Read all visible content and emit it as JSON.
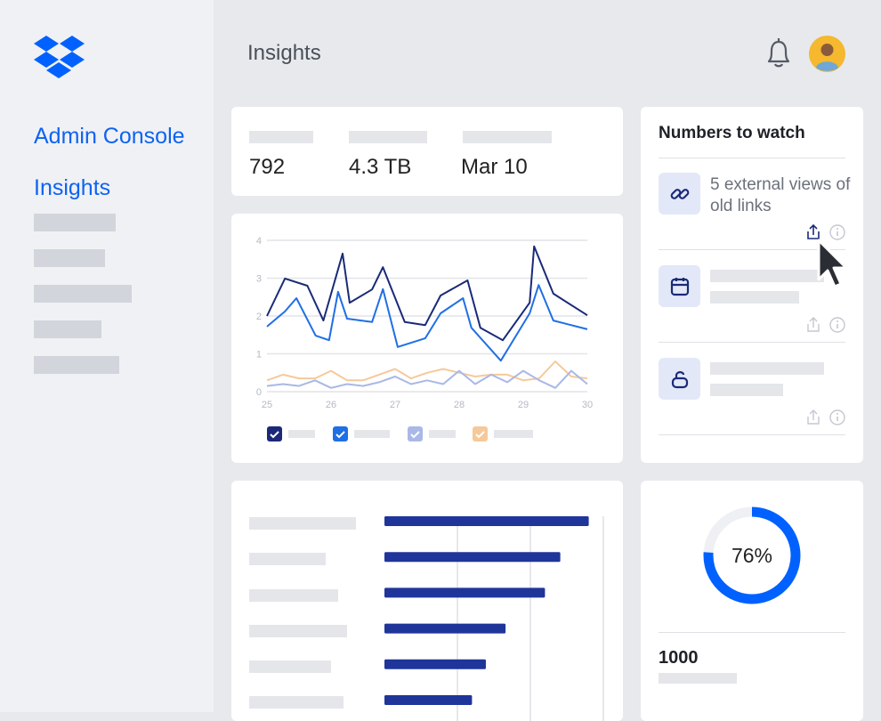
{
  "sidebar": {
    "title": "Admin Console",
    "active": "Insights"
  },
  "header": {
    "title": "Insights"
  },
  "stats": [
    792,
    "4.3 TB",
    "Mar 10"
  ],
  "numbers_to_watch": {
    "title": "Numbers to watch",
    "items": [
      {
        "text": "5 external views of old links"
      }
    ]
  },
  "summary": {
    "value": 1000
  },
  "chart_data": [
    {
      "type": "line",
      "xlim": [
        25,
        30
      ],
      "xticks": [
        25,
        26,
        27,
        28,
        29,
        30
      ],
      "ylim": [
        0,
        4
      ],
      "yticks": [
        0,
        1,
        2,
        3,
        4
      ],
      "grid": true,
      "series": [
        {
          "color": "#1a2a78",
          "x": [
            25,
            25.28,
            25.63,
            25.88,
            26.18,
            26.29,
            26.64,
            26.81,
            27.15,
            27.47,
            27.71,
            28.13,
            28.33,
            28.68,
            29.1,
            29.17,
            29.47,
            30
          ],
          "values": [
            2.0,
            2.99,
            2.8,
            1.88,
            3.65,
            2.35,
            2.7,
            3.29,
            1.84,
            1.76,
            2.54,
            2.94,
            1.69,
            1.36,
            2.35,
            3.84,
            2.59,
            2.02
          ]
        },
        {
          "color": "#1f6fe5",
          "x": [
            25,
            25.28,
            25.46,
            25.76,
            25.97,
            26.11,
            26.25,
            26.64,
            26.81,
            27.04,
            27.47,
            27.71,
            28.06,
            28.19,
            28.65,
            29.1,
            29.24,
            29.47,
            30
          ],
          "values": [
            1.72,
            2.12,
            2.47,
            1.48,
            1.36,
            2.64,
            1.93,
            1.84,
            2.71,
            1.18,
            1.41,
            2.07,
            2.47,
            1.69,
            0.82,
            2.07,
            2.82,
            1.88,
            1.65
          ]
        },
        {
          "color": "#a9b8e6",
          "x": [
            25,
            25.25,
            25.5,
            25.75,
            26,
            26.25,
            26.5,
            26.75,
            27,
            27.25,
            27.5,
            27.75,
            28,
            28.25,
            28.5,
            28.75,
            29,
            29.25,
            29.5,
            29.75,
            30
          ],
          "values": [
            0.15,
            0.2,
            0.15,
            0.3,
            0.1,
            0.2,
            0.15,
            0.25,
            0.4,
            0.2,
            0.3,
            0.2,
            0.55,
            0.2,
            0.45,
            0.25,
            0.55,
            0.3,
            0.1,
            0.55,
            0.2
          ]
        },
        {
          "color": "#f6c99a",
          "x": [
            25,
            25.25,
            25.5,
            25.75,
            26,
            26.25,
            26.5,
            26.75,
            27,
            27.25,
            27.5,
            27.75,
            28,
            28.25,
            28.5,
            28.75,
            29,
            29.25,
            29.5,
            29.75,
            30
          ],
          "values": [
            0.3,
            0.45,
            0.35,
            0.35,
            0.55,
            0.3,
            0.3,
            0.45,
            0.6,
            0.35,
            0.5,
            0.6,
            0.5,
            0.4,
            0.45,
            0.45,
            0.3,
            0.35,
            0.8,
            0.4,
            0.35
          ]
        }
      ]
    },
    {
      "type": "bar",
      "orientation": "horizontal",
      "color": "#1f359a",
      "values": [
        2.8,
        2.41,
        2.2,
        1.66,
        1.39,
        1.2
      ],
      "xlim": [
        0,
        3
      ],
      "xticks": [
        1,
        2,
        3
      ],
      "grid": true
    },
    {
      "type": "pie",
      "values": [
        76
      ],
      "value_labels": [
        "76%"
      ],
      "color": "#0061fe",
      "track_color": "#eef0f3"
    }
  ]
}
